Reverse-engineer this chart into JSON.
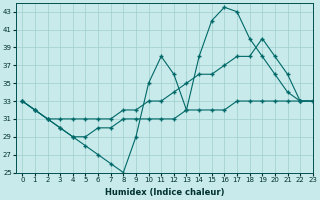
{
  "xlabel": "Humidex (Indice chaleur)",
  "bg_color": "#c8eaea",
  "grid_color": "#9ecece",
  "line_color": "#006868",
  "xlim": [
    -0.5,
    23
  ],
  "ylim": [
    25,
    44
  ],
  "yticks": [
    25,
    27,
    29,
    31,
    33,
    35,
    37,
    39,
    41,
    43
  ],
  "xticks": [
    0,
    1,
    2,
    3,
    4,
    5,
    6,
    7,
    8,
    9,
    10,
    11,
    12,
    13,
    14,
    15,
    16,
    17,
    18,
    19,
    20,
    21,
    22,
    23
  ],
  "series": [
    {
      "x": [
        0,
        1,
        2,
        3,
        4,
        5,
        6,
        7,
        8,
        9,
        10,
        11,
        12,
        13,
        14,
        15,
        16,
        17,
        18,
        19,
        20,
        21,
        22,
        23
      ],
      "y": [
        33,
        32,
        31,
        30,
        29,
        28,
        27,
        26,
        25,
        29,
        35,
        38,
        36,
        32,
        38,
        42,
        43.5,
        43,
        40,
        38,
        36,
        34,
        33,
        33
      ]
    },
    {
      "x": [
        0,
        1,
        2,
        3,
        4,
        5,
        6,
        7,
        8,
        9,
        10,
        11,
        12,
        13,
        14,
        15,
        16,
        17,
        18,
        19,
        20,
        21,
        22,
        23
      ],
      "y": [
        33,
        32,
        31,
        31,
        31,
        31,
        31,
        31,
        32,
        32,
        33,
        33,
        34,
        35,
        36,
        36,
        37,
        38,
        38,
        40,
        38,
        36,
        33,
        33
      ]
    },
    {
      "x": [
        0,
        1,
        2,
        3,
        4,
        5,
        6,
        7,
        8,
        9,
        10,
        11,
        12,
        13,
        14,
        15,
        16,
        17,
        18,
        19,
        20,
        21,
        22,
        23
      ],
      "y": [
        33,
        32,
        31,
        30,
        29,
        29,
        30,
        30,
        31,
        31,
        31,
        31,
        31,
        32,
        32,
        32,
        32,
        33,
        33,
        33,
        33,
        33,
        33,
        33
      ]
    }
  ]
}
